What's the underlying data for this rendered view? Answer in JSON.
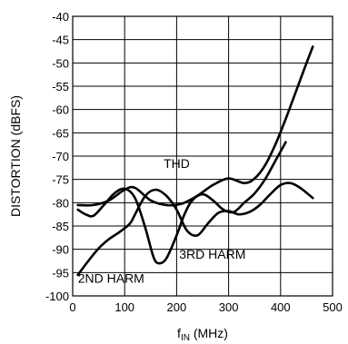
{
  "chart_data": {
    "type": "line",
    "xlabel": "f",
    "xlabel_sub": "IN",
    "xlabel_unit": " (MHz)",
    "ylabel": "DISTORTION (dBFS)",
    "xlim": [
      0,
      500
    ],
    "ylim": [
      -100,
      -40
    ],
    "xticks": [
      0,
      100,
      200,
      300,
      400,
      500
    ],
    "yticks": [
      -40,
      -45,
      -50,
      -55,
      -60,
      -65,
      -70,
      -75,
      -80,
      -85,
      -90,
      -95,
      -100
    ],
    "grid": true,
    "series": [
      {
        "name": "THD",
        "x": [
          10,
          40,
          70,
          100,
          120,
          150,
          180,
          210,
          240,
          270,
          300,
          330,
          350,
          370,
          390,
          410,
          430,
          445,
          462
        ],
        "y": [
          -80.5,
          -80.5,
          -79.5,
          -77.2,
          -76.8,
          -79.5,
          -80.5,
          -80.2,
          -78.5,
          -76.2,
          -74.8,
          -75.8,
          -74.8,
          -72.0,
          -67.5,
          -62.0,
          -56.0,
          -51.5,
          -46.5
        ]
      },
      {
        "name": "2ND HARM",
        "x": [
          10,
          30,
          50,
          70,
          90,
          110,
          120,
          140,
          160,
          180,
          200,
          220,
          240,
          260,
          280,
          300,
          320,
          340,
          360,
          380,
          400,
          420,
          440,
          462
        ],
        "y": [
          -95.5,
          -92.5,
          -89.8,
          -87.8,
          -86.3,
          -84.5,
          -82.5,
          -78.5,
          -77.2,
          -78.5,
          -81.5,
          -86.0,
          -87.0,
          -84.5,
          -82.2,
          -81.8,
          -82.5,
          -82.0,
          -80.5,
          -78.2,
          -76.2,
          -75.8,
          -77.0,
          -79.0
        ]
      },
      {
        "name": "3RD HARM",
        "x": [
          10,
          25,
          40,
          60,
          80,
          100,
          120,
          140,
          155,
          165,
          180,
          200,
          215,
          230,
          250,
          270,
          290,
          310,
          330,
          350,
          370,
          390,
          410
        ],
        "y": [
          -81.5,
          -82.5,
          -82.8,
          -80.5,
          -78.0,
          -77.0,
          -79.0,
          -85.5,
          -91.5,
          -93.0,
          -92.0,
          -87.0,
          -82.5,
          -79.5,
          -78.2,
          -79.5,
          -81.5,
          -82.0,
          -80.0,
          -78.0,
          -75.0,
          -71.0,
          -67.0
        ]
      }
    ],
    "annotations": [
      {
        "text": "THD",
        "x": 175,
        "y": -72.5
      },
      {
        "text": "3RD HARM",
        "x": 205,
        "y": -92
      },
      {
        "text": "2ND HARM",
        "x": 10,
        "y": -97.2
      }
    ]
  }
}
